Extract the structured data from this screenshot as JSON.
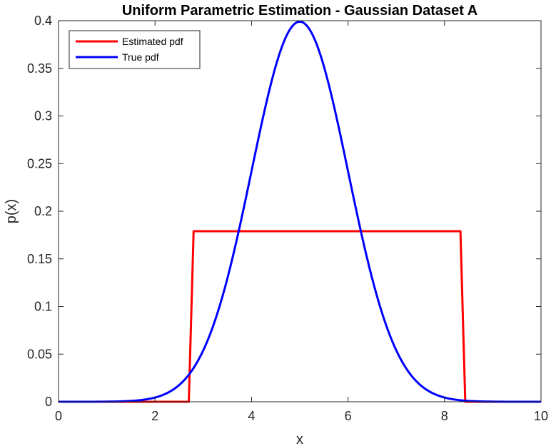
{
  "chart_data": {
    "type": "line",
    "title": "Uniform Parametric Estimation - Gaussian Dataset A",
    "xlabel": "x",
    "ylabel": "p(x)",
    "xlim": [
      0,
      10
    ],
    "ylim": [
      0,
      0.4
    ],
    "x_ticks": [
      0,
      2,
      4,
      6,
      8,
      10
    ],
    "x_tick_labels": [
      "0",
      "2",
      "4",
      "6",
      "8",
      "10"
    ],
    "y_ticks": [
      0,
      0.05,
      0.1,
      0.15,
      0.2,
      0.25,
      0.3,
      0.35,
      0.4
    ],
    "y_tick_labels": [
      "0",
      "0.05",
      "0.1",
      "0.15",
      "0.2",
      "0.25",
      "0.3",
      "0.35",
      "0.4"
    ],
    "grid": false,
    "legend_position": "top-left",
    "series": [
      {
        "name": "Estimated pdf",
        "color": "#ff0000",
        "x": [
          0,
          2.7,
          2.8,
          8.33,
          8.43,
          10
        ],
        "y": [
          0,
          0,
          0.179,
          0.179,
          0,
          0
        ]
      },
      {
        "name": "True pdf",
        "color": "#0000ff",
        "distribution": "gaussian",
        "mean": 5,
        "std": 1,
        "peak": 0.399
      }
    ]
  }
}
